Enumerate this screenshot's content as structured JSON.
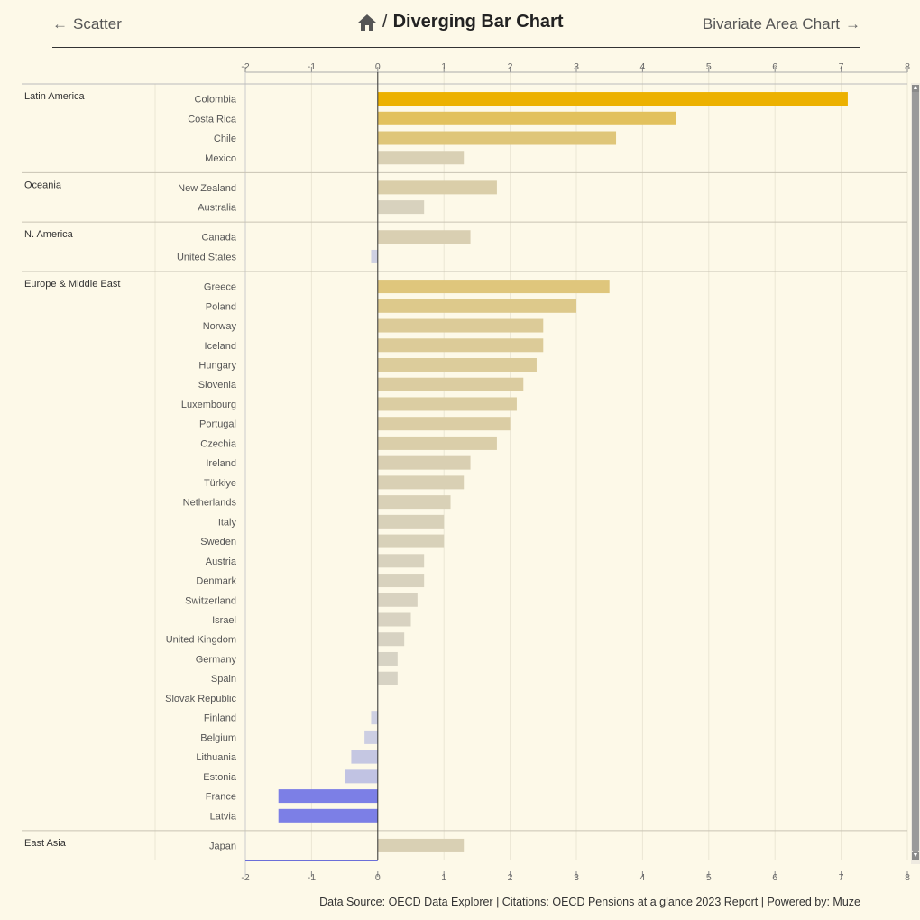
{
  "nav": {
    "prev_label": "Scatter",
    "prev_arrow": "←",
    "title": "Diverging Bar Chart",
    "title_sep": "/",
    "next_label": "Bivariate Area Chart",
    "next_arrow": "→",
    "home_icon": "home-icon"
  },
  "footer": {
    "text": "Data Source: OECD Data Explorer | Citations: OECD Pensions at a glance 2023 Report | Powered by: Muze"
  },
  "chart_data": {
    "type": "bar",
    "orientation": "horizontal",
    "xlim": [
      -2,
      8
    ],
    "x_ticks": [
      "-2",
      "-1",
      "0",
      "1",
      "2",
      "3",
      "4",
      "5",
      "6",
      "7",
      "8"
    ],
    "grid": true,
    "groups": [
      {
        "name": "Latin America",
        "items": [
          {
            "country": "Colombia",
            "value": 7.1
          },
          {
            "country": "Costa Rica",
            "value": 4.5
          },
          {
            "country": "Chile",
            "value": 3.6
          },
          {
            "country": "Mexico",
            "value": 1.3
          }
        ]
      },
      {
        "name": "Oceania",
        "items": [
          {
            "country": "New Zealand",
            "value": 1.8
          },
          {
            "country": "Australia",
            "value": 0.7
          }
        ]
      },
      {
        "name": "N. America",
        "items": [
          {
            "country": "Canada",
            "value": 1.4
          },
          {
            "country": "United States",
            "value": -0.1
          }
        ]
      },
      {
        "name": "Europe & Middle East",
        "items": [
          {
            "country": "Greece",
            "value": 3.5
          },
          {
            "country": "Poland",
            "value": 3.0
          },
          {
            "country": "Norway",
            "value": 2.5
          },
          {
            "country": "Iceland",
            "value": 2.5
          },
          {
            "country": "Hungary",
            "value": 2.4
          },
          {
            "country": "Slovenia",
            "value": 2.2
          },
          {
            "country": "Luxembourg",
            "value": 2.1
          },
          {
            "country": "Portugal",
            "value": 2.0
          },
          {
            "country": "Czechia",
            "value": 1.8
          },
          {
            "country": "Ireland",
            "value": 1.4
          },
          {
            "country": "Türkiye",
            "value": 1.3
          },
          {
            "country": "Netherlands",
            "value": 1.1
          },
          {
            "country": "Italy",
            "value": 1.0
          },
          {
            "country": "Sweden",
            "value": 1.0
          },
          {
            "country": "Austria",
            "value": 0.7
          },
          {
            "country": "Denmark",
            "value": 0.7
          },
          {
            "country": "Switzerland",
            "value": 0.6
          },
          {
            "country": "Israel",
            "value": 0.5
          },
          {
            "country": "United Kingdom",
            "value": 0.4
          },
          {
            "country": "Germany",
            "value": 0.3
          },
          {
            "country": "Spain",
            "value": 0.3
          },
          {
            "country": "Slovak Republic",
            "value": 0.0
          },
          {
            "country": "Finland",
            "value": -0.1
          },
          {
            "country": "Belgium",
            "value": -0.2
          },
          {
            "country": "Lithuania",
            "value": -0.4
          },
          {
            "country": "Estonia",
            "value": -0.5
          },
          {
            "country": "France",
            "value": -1.5
          },
          {
            "country": "Latvia",
            "value": -1.5
          }
        ]
      },
      {
        "name": "East Asia",
        "items": [
          {
            "country": "Japan",
            "value": 1.3
          }
        ]
      }
    ],
    "colors": {
      "pos_max": "#ecb100",
      "pos_min": "#d7d3c6",
      "neg_max": "#7c7fe6",
      "neg_min": "#cfd1e2"
    }
  }
}
